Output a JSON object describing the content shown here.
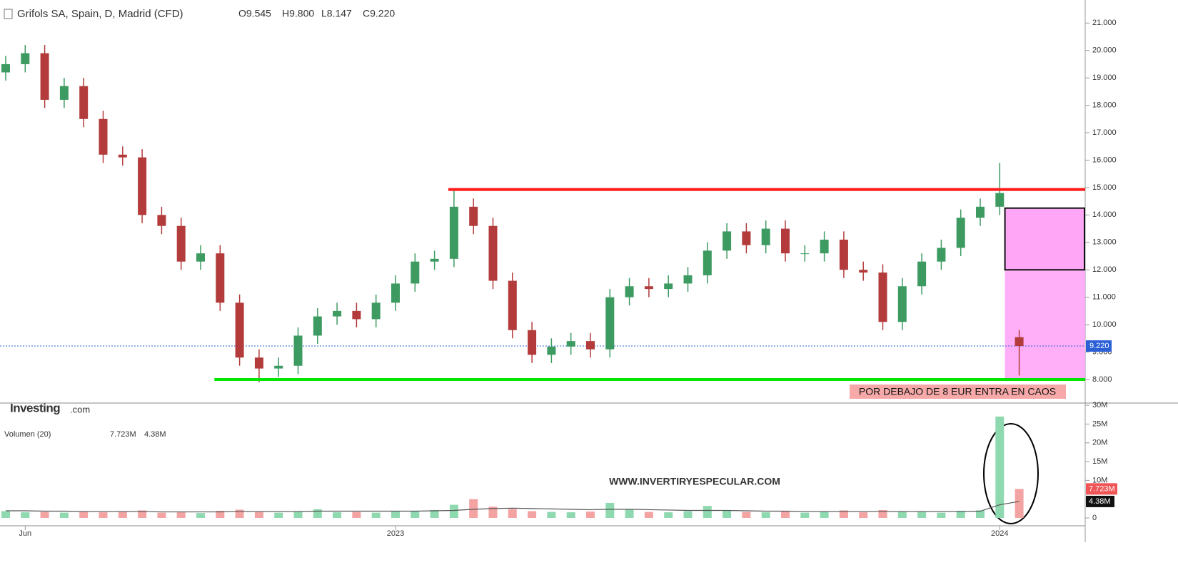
{
  "chart_data": [
    {
      "type": "candlestick",
      "title": "Grifols SA, Spain, D, Madrid (CFD)",
      "ohlc_legend": [
        "O9.545",
        "H9.800",
        "L8.147",
        "C9.220"
      ],
      "categories": [
        null,
        "Jun",
        null,
        null,
        null,
        null,
        null,
        null,
        null,
        null,
        null,
        null,
        null,
        null,
        null,
        null,
        null,
        null,
        null,
        null,
        "2023",
        null,
        null,
        null,
        null,
        null,
        null,
        null,
        null,
        null,
        null,
        null,
        null,
        null,
        null,
        null,
        null,
        null,
        null,
        null,
        null,
        null,
        null,
        null,
        null,
        null,
        null,
        null,
        null,
        null,
        null,
        "2024",
        null
      ],
      "open": [
        19.2,
        19.5,
        19.9,
        18.2,
        18.7,
        17.5,
        16.2,
        16.1,
        14.0,
        13.6,
        12.3,
        12.6,
        10.8,
        8.8,
        8.4,
        8.5,
        9.6,
        10.3,
        10.5,
        10.2,
        10.8,
        11.5,
        12.3,
        12.4,
        14.3,
        13.6,
        11.6,
        9.8,
        8.9,
        9.2,
        9.4,
        9.1,
        11.0,
        11.4,
        11.3,
        11.5,
        11.8,
        12.7,
        13.4,
        12.9,
        13.5,
        12.6,
        12.6,
        13.1,
        12.0,
        11.9,
        10.1,
        11.4,
        12.3,
        12.8,
        13.9,
        14.3,
        9.545
      ],
      "high": [
        19.8,
        20.2,
        20.2,
        19.0,
        19.0,
        17.8,
        16.5,
        16.4,
        14.3,
        13.9,
        12.9,
        12.9,
        11.1,
        9.1,
        8.8,
        9.9,
        10.6,
        10.8,
        10.8,
        11.1,
        11.8,
        12.6,
        12.7,
        14.9,
        14.6,
        13.9,
        11.9,
        10.1,
        9.5,
        9.7,
        9.7,
        11.3,
        11.7,
        11.7,
        11.8,
        12.1,
        13.0,
        13.7,
        13.7,
        13.8,
        13.8,
        12.9,
        13.4,
        13.4,
        12.3,
        12.2,
        11.7,
        12.6,
        13.1,
        14.2,
        14.6,
        15.9,
        9.8
      ],
      "low": [
        18.9,
        19.2,
        17.9,
        17.9,
        17.2,
        15.9,
        15.8,
        13.7,
        13.3,
        12.0,
        12.0,
        10.5,
        8.5,
        7.9,
        8.1,
        8.2,
        9.3,
        10.0,
        9.9,
        9.9,
        10.5,
        11.2,
        12.0,
        12.1,
        13.3,
        11.3,
        9.5,
        8.6,
        8.6,
        8.9,
        8.8,
        8.8,
        10.7,
        11.0,
        11.0,
        11.2,
        11.5,
        12.4,
        12.6,
        12.6,
        12.3,
        12.3,
        12.3,
        11.7,
        11.6,
        9.8,
        9.8,
        11.1,
        12.0,
        12.5,
        13.6,
        14.0,
        8.147
      ],
      "close": [
        19.5,
        19.9,
        18.2,
        18.7,
        17.5,
        16.2,
        16.1,
        14.0,
        13.6,
        12.3,
        12.6,
        10.8,
        8.8,
        8.4,
        8.5,
        9.6,
        10.3,
        10.5,
        10.2,
        10.8,
        11.5,
        12.3,
        12.4,
        14.3,
        13.6,
        11.6,
        9.8,
        8.9,
        9.2,
        9.4,
        9.1,
        11.0,
        11.4,
        11.3,
        11.5,
        11.8,
        12.7,
        13.4,
        12.9,
        13.5,
        12.6,
        12.6,
        13.1,
        12.0,
        11.9,
        10.1,
        11.4,
        12.3,
        12.8,
        13.9,
        14.3,
        14.8,
        9.22
      ],
      "colors": {
        "up": "#3d9b62",
        "down": "#b33b3b"
      },
      "ylim": [
        7.14,
        21.84
      ],
      "yticks": [
        {
          "value": 8,
          "label": "8.000"
        },
        {
          "value": 9,
          "label": "9.000"
        },
        {
          "value": 10,
          "label": "10.000"
        },
        {
          "value": 11,
          "label": "11.000"
        },
        {
          "value": 12,
          "label": "12.000"
        },
        {
          "value": 13,
          "label": "13.000"
        },
        {
          "value": 14,
          "label": "14.000"
        },
        {
          "value": 15,
          "label": "15.000"
        },
        {
          "value": 16,
          "label": "16.000"
        },
        {
          "value": 17,
          "label": "17.000"
        },
        {
          "value": 18,
          "label": "18.000"
        },
        {
          "value": 19,
          "label": "19.000"
        },
        {
          "value": 20,
          "label": "20.000"
        },
        {
          "value": 21,
          "label": "21.000"
        }
      ],
      "last_price": {
        "value": 9.22,
        "value_label": "9.220",
        "color": "#2a5fd6"
      },
      "lines": [
        {
          "value": 14.93,
          "start": 23,
          "color": "#ff1a1a"
        },
        {
          "value": 8.0,
          "start": 11,
          "color": "#00e600"
        }
      ],
      "zone": {
        "top": 14.25,
        "middle": 12.0,
        "bottom": 8.0,
        "color": "#ffa6f6"
      },
      "annotation": "POR DEBAJO DE 8 EUR ENTRA EN CAOS",
      "logo": {
        "brand": "Investing",
        "suffix": ".com"
      }
    },
    {
      "type": "bar",
      "title": "Volumen (20)",
      "legend_values": [
        "7.723M",
        "4.38M"
      ],
      "values": [
        1.8,
        1.5,
        1.6,
        1.4,
        1.7,
        1.5,
        1.6,
        2.0,
        1.4,
        1.5,
        1.3,
        1.9,
        2.2,
        1.6,
        1.4,
        1.8,
        2.3,
        1.5,
        1.6,
        1.4,
        1.7,
        1.9,
        2.1,
        3.5,
        5.0,
        3.0,
        2.4,
        1.8,
        1.6,
        1.5,
        1.7,
        4.0,
        2.2,
        1.6,
        1.5,
        1.8,
        3.2,
        1.9,
        1.6,
        1.5,
        1.7,
        1.4,
        1.6,
        2.0,
        1.5,
        2.1,
        1.8,
        1.6,
        1.4,
        1.9,
        2.0,
        27.0,
        7.723
      ],
      "ma": [
        1.9,
        1.9,
        1.8,
        1.8,
        1.7,
        1.7,
        1.7,
        1.7,
        1.6,
        1.6,
        1.6,
        1.6,
        1.7,
        1.7,
        1.7,
        1.7,
        1.8,
        1.8,
        1.8,
        1.8,
        1.8,
        1.8,
        1.9,
        2.0,
        2.3,
        2.5,
        2.6,
        2.5,
        2.4,
        2.3,
        2.2,
        2.3,
        2.3,
        2.2,
        2.1,
        2.0,
        2.0,
        2.0,
        1.9,
        1.8,
        1.8,
        1.7,
        1.7,
        1.7,
        1.7,
        1.7,
        1.7,
        1.7,
        1.7,
        1.7,
        1.8,
        3.5,
        4.38
      ],
      "ma_color": "#555555",
      "ylim": [
        -1.9,
        30.4
      ],
      "yticks": [
        0,
        {
          "value": 5,
          "label": "5M"
        },
        {
          "value": 10,
          "label": "10M"
        },
        {
          "value": 15,
          "label": "15M"
        },
        {
          "value": 20,
          "label": "20M"
        },
        {
          "value": 25,
          "label": "25M"
        },
        {
          "value": 30,
          "label": "30M"
        }
      ],
      "watermark": "WWW.INVERTIRYESPECULAR.COM"
    }
  ]
}
